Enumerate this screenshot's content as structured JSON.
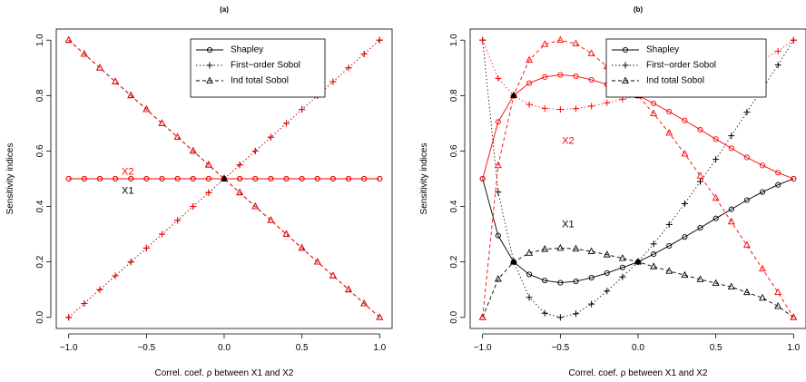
{
  "colors": {
    "x1": "#000000",
    "x2": "#ff0000"
  },
  "legend_items": [
    {
      "label": "Shapley",
      "symbol": "circle",
      "dash": "solid"
    },
    {
      "label": "First−order Sobol",
      "symbol": "plus",
      "dash": "dotted"
    },
    {
      "label": "Ind total Sobol",
      "symbol": "triangle",
      "dash": "dashed"
    }
  ],
  "chart_data": [
    {
      "type": "line",
      "panel": "(a)",
      "title": "(a)",
      "xlabel": "Correl. coef. ρ between X1 and X2",
      "ylabel": "Sensitivity indices",
      "xlim": [
        -1.0,
        1.0
      ],
      "ylim": [
        0.0,
        1.0
      ],
      "xticks": [
        -1.0,
        -0.5,
        0.0,
        0.5,
        1.0
      ],
      "xtick_labels": [
        "−1.0",
        "−0.5",
        "0.0",
        "0.5",
        "1.0"
      ],
      "yticks": [
        0.0,
        0.2,
        0.4,
        0.6,
        0.8,
        1.0
      ],
      "ytick_labels": [
        "0.0",
        "0.2",
        "0.4",
        "0.6",
        "0.8",
        "1.0"
      ],
      "legend_position": "top-right",
      "annotations": [
        {
          "text": "X2",
          "x": -0.62,
          "y": 0.525,
          "color": "#ff0000"
        },
        {
          "text": "X1",
          "x": -0.62,
          "y": 0.455,
          "color": "#000000"
        }
      ],
      "x": [
        -1.0,
        -0.9,
        -0.8,
        -0.7,
        -0.6,
        -0.5,
        -0.4,
        -0.3,
        -0.2,
        -0.1,
        0.0,
        0.1,
        0.2,
        0.3,
        0.4,
        0.5,
        0.6,
        0.7,
        0.8,
        0.9,
        1.0
      ],
      "series": [
        {
          "variable": "X1",
          "index": "Shapley",
          "color": "#000000",
          "dash": "solid",
          "marker": "circle",
          "values": [
            0.5,
            0.5,
            0.5,
            0.5,
            0.5,
            0.5,
            0.5,
            0.5,
            0.5,
            0.5,
            0.5,
            0.5,
            0.5,
            0.5,
            0.5,
            0.5,
            0.5,
            0.5,
            0.5,
            0.5,
            0.5
          ]
        },
        {
          "variable": "X2",
          "index": "Shapley",
          "color": "#ff0000",
          "dash": "solid",
          "marker": "circle",
          "values": [
            0.5,
            0.5,
            0.5,
            0.5,
            0.5,
            0.5,
            0.5,
            0.5,
            0.5,
            0.5,
            0.5,
            0.5,
            0.5,
            0.5,
            0.5,
            0.5,
            0.5,
            0.5,
            0.5,
            0.5,
            0.5
          ]
        },
        {
          "variable": "X1",
          "index": "First-order Sobol",
          "color": "#000000",
          "dash": "dotted",
          "marker": "plus",
          "values": [
            0.0,
            0.05,
            0.1,
            0.15,
            0.2,
            0.25,
            0.3,
            0.35,
            0.4,
            0.45,
            0.5,
            0.55,
            0.6,
            0.65,
            0.7,
            0.75,
            0.8,
            0.85,
            0.9,
            0.95,
            1.0
          ]
        },
        {
          "variable": "X2",
          "index": "First-order Sobol",
          "color": "#ff0000",
          "dash": "dotted",
          "marker": "plus",
          "values": [
            0.0,
            0.05,
            0.1,
            0.15,
            0.2,
            0.25,
            0.3,
            0.35,
            0.4,
            0.45,
            0.5,
            0.55,
            0.6,
            0.65,
            0.7,
            0.75,
            0.8,
            0.85,
            0.9,
            0.95,
            1.0
          ]
        },
        {
          "variable": "X1",
          "index": "Ind total Sobol",
          "color": "#000000",
          "dash": "dashed",
          "marker": "triangle",
          "values": [
            1.0,
            0.95,
            0.9,
            0.85,
            0.8,
            0.75,
            0.7,
            0.65,
            0.6,
            0.55,
            0.5,
            0.45,
            0.4,
            0.35,
            0.3,
            0.25,
            0.2,
            0.15,
            0.1,
            0.05,
            0.0
          ]
        },
        {
          "variable": "X2",
          "index": "Ind total Sobol",
          "color": "#ff0000",
          "dash": "dashed",
          "marker": "triangle",
          "values": [
            1.0,
            0.95,
            0.9,
            0.85,
            0.8,
            0.75,
            0.7,
            0.65,
            0.6,
            0.55,
            0.5,
            0.45,
            0.4,
            0.35,
            0.3,
            0.25,
            0.2,
            0.15,
            0.1,
            0.05,
            0.0
          ]
        }
      ],
      "filled_points": [
        {
          "x": 0.0,
          "y": 0.5
        }
      ]
    },
    {
      "type": "line",
      "panel": "(b)",
      "title": "(b)",
      "xlabel": "Correl. coef. ρ between X1 and X2",
      "ylabel": "Sensitivity indices",
      "xlim": [
        -1.0,
        1.0
      ],
      "ylim": [
        0.0,
        1.0
      ],
      "xticks": [
        -1.0,
        -0.5,
        0.0,
        0.5,
        1.0
      ],
      "xtick_labels": [
        "−1.0",
        "−0.5",
        "0.0",
        "0.5",
        "1.0"
      ],
      "yticks": [
        0.0,
        0.2,
        0.4,
        0.6,
        0.8,
        1.0
      ],
      "ytick_labels": [
        "0.0",
        "0.2",
        "0.4",
        "0.6",
        "0.8",
        "1.0"
      ],
      "legend_position": "top-right",
      "annotations": [
        {
          "text": "X2",
          "x": -0.45,
          "y": 0.635,
          "color": "#ff0000"
        },
        {
          "text": "X1",
          "x": -0.45,
          "y": 0.335,
          "color": "#000000"
        }
      ],
      "x": [
        -1.0,
        -0.9,
        -0.8,
        -0.7,
        -0.6,
        -0.5,
        -0.4,
        -0.3,
        -0.2,
        -0.1,
        0.0,
        0.1,
        0.2,
        0.3,
        0.4,
        0.5,
        0.6,
        0.7,
        0.8,
        0.9,
        1.0
      ],
      "series": [
        {
          "variable": "X1",
          "index": "Shapley",
          "color": "#000000",
          "dash": "solid",
          "marker": "circle",
          "values": [
            0.5,
            0.295,
            0.2,
            0.155,
            0.133,
            0.125,
            0.13,
            0.143,
            0.16,
            0.18,
            0.2,
            0.228,
            0.258,
            0.29,
            0.323,
            0.357,
            0.39,
            0.423,
            0.452,
            0.478,
            0.5
          ]
        },
        {
          "variable": "X2",
          "index": "Shapley",
          "color": "#ff0000",
          "dash": "solid",
          "marker": "circle",
          "values": [
            0.5,
            0.705,
            0.8,
            0.845,
            0.867,
            0.875,
            0.87,
            0.857,
            0.84,
            0.82,
            0.8,
            0.772,
            0.742,
            0.71,
            0.677,
            0.643,
            0.61,
            0.577,
            0.548,
            0.522,
            0.5
          ]
        },
        {
          "variable": "X1",
          "index": "First-order Sobol",
          "color": "#000000",
          "dash": "dotted",
          "marker": "plus",
          "values": [
            1.0,
            0.452,
            0.2,
            0.072,
            0.015,
            0.0,
            0.013,
            0.048,
            0.095,
            0.146,
            0.2,
            0.265,
            0.335,
            0.41,
            0.49,
            0.57,
            0.655,
            0.74,
            0.825,
            0.91,
            1.0
          ]
        },
        {
          "variable": "X2",
          "index": "First-order Sobol",
          "color": "#ff0000",
          "dash": "dotted",
          "marker": "plus",
          "values": [
            1.0,
            0.862,
            0.8,
            0.768,
            0.754,
            0.75,
            0.753,
            0.762,
            0.774,
            0.787,
            0.8,
            0.817,
            0.833,
            0.848,
            0.863,
            0.877,
            0.89,
            0.91,
            0.93,
            0.96,
            1.0
          ]
        },
        {
          "variable": "X1",
          "index": "Ind total Sobol",
          "color": "#000000",
          "dash": "dashed",
          "marker": "triangle",
          "values": [
            0.0,
            0.138,
            0.2,
            0.232,
            0.246,
            0.25,
            0.247,
            0.238,
            0.226,
            0.213,
            0.2,
            0.183,
            0.167,
            0.152,
            0.137,
            0.123,
            0.11,
            0.09,
            0.07,
            0.04,
            0.0
          ]
        },
        {
          "variable": "X2",
          "index": "Ind total Sobol",
          "color": "#ff0000",
          "dash": "dashed",
          "marker": "triangle",
          "values": [
            0.0,
            0.548,
            0.8,
            0.928,
            0.985,
            1.0,
            0.987,
            0.952,
            0.905,
            0.854,
            0.8,
            0.735,
            0.665,
            0.59,
            0.51,
            0.43,
            0.345,
            0.26,
            0.175,
            0.09,
            0.0
          ]
        }
      ],
      "filled_points": [
        {
          "x": -0.8,
          "y": 0.8
        },
        {
          "x": -0.8,
          "y": 0.2
        },
        {
          "x": 0.0,
          "y": 0.8
        },
        {
          "x": 0.0,
          "y": 0.2
        }
      ]
    }
  ]
}
